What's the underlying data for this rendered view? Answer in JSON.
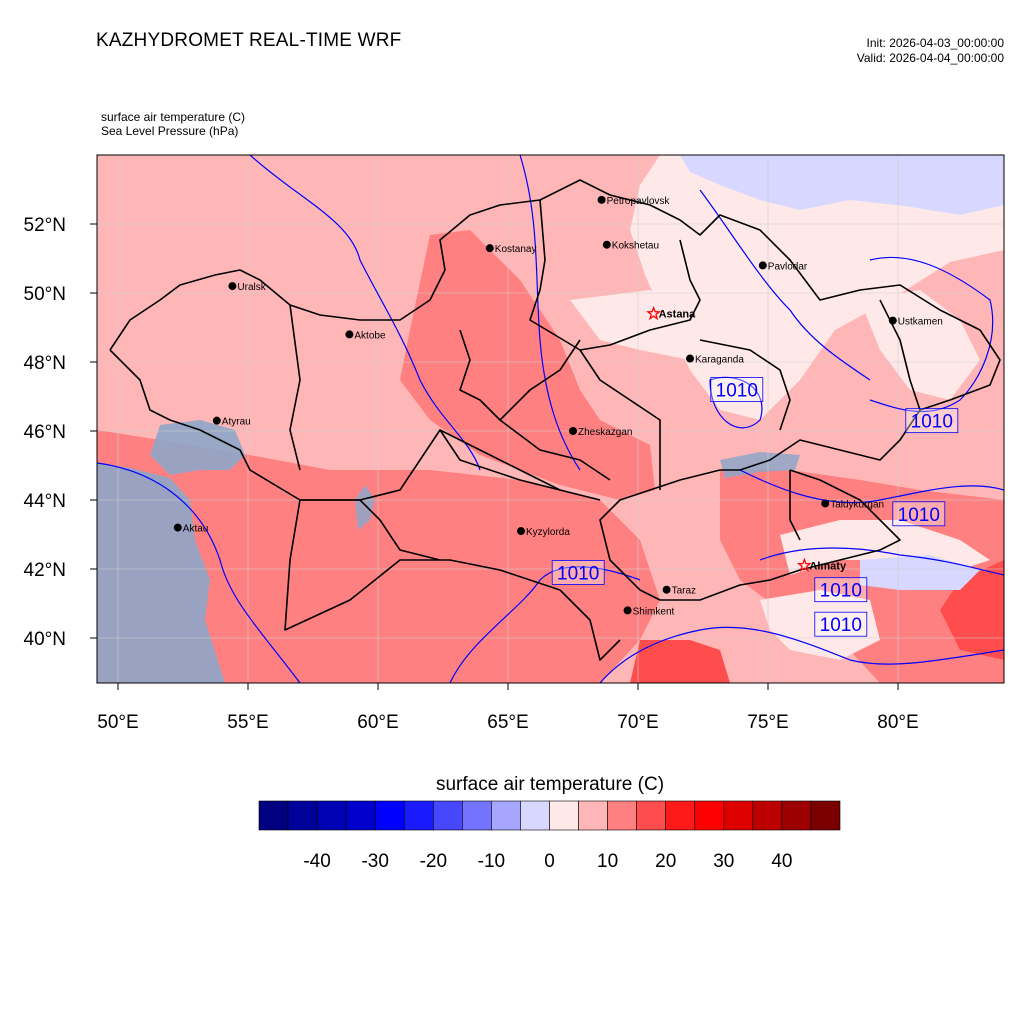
{
  "header": {
    "title": "KAZHYDROMET REAL-TIME WRF",
    "init_label": "Init: 2026-04-03_00:00:00",
    "valid_label": "Valid: 2026-04-04_00:00:00"
  },
  "fields": [
    {
      "label": "surface air temperature   (C)"
    },
    {
      "label": "Sea Level Pressure   (hPa)"
    }
  ],
  "axes": {
    "lon_ticks": [
      50,
      55,
      60,
      65,
      70,
      75,
      80
    ],
    "lon_labels": [
      "50°E",
      "55°E",
      "60°E",
      "65°E",
      "70°E",
      "75°E",
      "80°E"
    ],
    "lat_ticks": [
      40,
      42,
      44,
      46,
      48,
      50,
      52
    ],
    "lat_labels": [
      "40°N",
      "42°N",
      "44°N",
      "46°N",
      "48°N",
      "50°N",
      "52°N"
    ]
  },
  "cities": [
    {
      "name": "Petropavlovsk",
      "lon": 68.6,
      "lat": 52.7,
      "marker": "dot"
    },
    {
      "name": "Kostanay",
      "lon": 64.3,
      "lat": 51.3,
      "marker": "dot"
    },
    {
      "name": "Kokshetau",
      "lon": 68.8,
      "lat": 51.4,
      "marker": "dot"
    },
    {
      "name": "Pavlodar",
      "lon": 74.8,
      "lat": 50.8,
      "marker": "dot"
    },
    {
      "name": "Uralsk",
      "lon": 54.4,
      "lat": 50.2,
      "marker": "dot"
    },
    {
      "name": "Astana",
      "lon": 70.6,
      "lat": 49.4,
      "marker": "star",
      "bold": true
    },
    {
      "name": "Ustkamen",
      "lon": 79.8,
      "lat": 49.2,
      "marker": "dot"
    },
    {
      "name": "Aktobe",
      "lon": 58.9,
      "lat": 48.8,
      "marker": "dot"
    },
    {
      "name": "Karaganda",
      "lon": 72.0,
      "lat": 48.1,
      "marker": "dot"
    },
    {
      "name": "Atyrau",
      "lon": 53.8,
      "lat": 46.3,
      "marker": "dot"
    },
    {
      "name": "Zheskazgan",
      "lon": 67.5,
      "lat": 46.0,
      "marker": "dot"
    },
    {
      "name": "Taldykurgan",
      "lon": 77.2,
      "lat": 43.9,
      "marker": "dot"
    },
    {
      "name": "Aktau",
      "lon": 52.3,
      "lat": 43.2,
      "marker": "dot"
    },
    {
      "name": "Kyzylorda",
      "lon": 65.5,
      "lat": 43.1,
      "marker": "dot"
    },
    {
      "name": "Almaty",
      "lon": 76.4,
      "lat": 42.1,
      "marker": "star",
      "bold": true
    },
    {
      "name": "Taraz",
      "lon": 71.1,
      "lat": 41.4,
      "marker": "dot"
    },
    {
      "name": "Shimkent",
      "lon": 69.6,
      "lat": 40.8,
      "marker": "dot"
    }
  ],
  "isobar_labels": [
    {
      "text": "1010",
      "lon": 73.8,
      "lat": 47.2
    },
    {
      "text": "1010",
      "lon": 81.3,
      "lat": 46.3
    },
    {
      "text": "1010",
      "lon": 80.8,
      "lat": 43.6
    },
    {
      "text": "1010",
      "lon": 67.7,
      "lat": 41.9
    },
    {
      "text": "1010",
      "lon": 77.8,
      "lat": 41.4
    },
    {
      "text": "1010",
      "lon": 77.8,
      "lat": 40.4
    }
  ],
  "colorbar": {
    "title": "surface air temperature  (C)",
    "colors": [
      "#000080",
      "#00009a",
      "#0000b4",
      "#0000cd",
      "#0000ff",
      "#1a1aff",
      "#4747ff",
      "#7373ff",
      "#a6a6ff",
      "#d7d7ff",
      "#ffe8e8",
      "#ffb6b6",
      "#ff8080",
      "#ff4d4d",
      "#ff1a1a",
      "#ff0000",
      "#de0000",
      "#bc0000",
      "#9c0000",
      "#7a0000"
    ],
    "tick_labels": [
      "-40",
      "-30",
      "-20",
      "-10",
      "0",
      "10",
      "20",
      "30",
      "40"
    ]
  },
  "colors": {
    "isobar": "#0000ff",
    "border": "#000000",
    "star": "#ff0000",
    "sea_overlay": "#8ea6c8"
  }
}
